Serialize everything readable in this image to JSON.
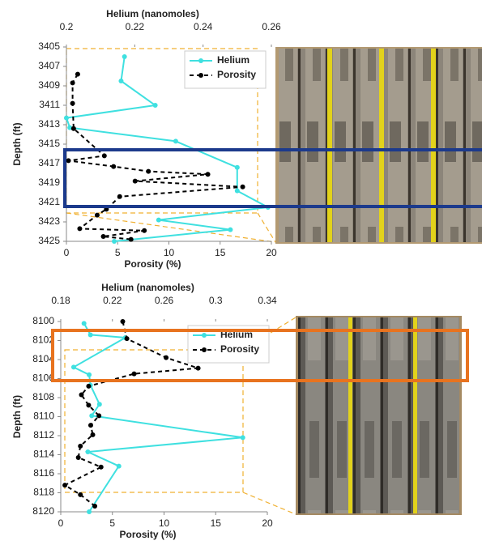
{
  "chart_data": [
    {
      "type": "line",
      "x_title": "Porosity (%)",
      "x2_title": "Helium (nanomoles)",
      "y_title": "Depth (ft)",
      "xlim": [
        0,
        20
      ],
      "xticks": [
        0,
        5,
        10,
        15,
        20
      ],
      "x2lim": [
        0.2,
        0.26
      ],
      "x2ticks": [
        0.2,
        0.22,
        0.24,
        0.26
      ],
      "ylim": [
        3405,
        3425
      ],
      "y_reversed": true,
      "yticks": [
        3405,
        3407,
        3409,
        3411,
        3413,
        3415,
        3417,
        3419,
        3421,
        3423,
        3425
      ],
      "legend": "upper right",
      "grid": false,
      "series": [
        {
          "name": "Helium",
          "color": "#3fe0e0",
          "axis": "x2",
          "linestyle": "solid",
          "y": [
            3406,
            3408.5,
            3411,
            3412.3,
            3413.3,
            3414.7,
            3417.4,
            3419.8,
            3421.5,
            3422.8,
            3423.8,
            3425
          ],
          "values": [
            0.217,
            0.216,
            0.226,
            0.2,
            0.201,
            0.232,
            0.25,
            0.25,
            0.259,
            0.227,
            0.248,
            0.214
          ]
        },
        {
          "name": "Porosity",
          "color": "#000000",
          "axis": "x",
          "linestyle": "dashed",
          "y": [
            3407.8,
            3408.7,
            3410.8,
            3413.4,
            3416.2,
            3416.7,
            3417.3,
            3417.8,
            3418.1,
            3418.8,
            3419.4,
            3420.4,
            3421.7,
            3422.3,
            3423.7,
            3423.9,
            3424.5,
            3424.8
          ],
          "values": [
            1.1,
            0.6,
            0.6,
            0.7,
            3.7,
            0.2,
            4.6,
            8.0,
            13.8,
            6.7,
            17.2,
            5.2,
            3.9,
            3.0,
            1.3,
            7.6,
            3.6,
            6.3
          ]
        }
      ]
    },
    {
      "type": "line",
      "x_title": "Porosity (%)",
      "x2_title": "Helium (nanomoles)",
      "y_title": "Depth (ft)",
      "xlim": [
        0,
        20
      ],
      "xticks": [
        0,
        5,
        10,
        15,
        20
      ],
      "x2lim": [
        0.18,
        0.34
      ],
      "x2ticks": [
        0.18,
        0.22,
        0.26,
        0.3,
        0.34
      ],
      "ylim": [
        8100,
        8120
      ],
      "y_reversed": true,
      "yticks": [
        8100,
        8102,
        8104,
        8106,
        8108,
        8110,
        8112,
        8114,
        8116,
        8118,
        8120
      ],
      "legend": "upper right",
      "grid": false,
      "series": [
        {
          "name": "Helium",
          "color": "#3fe0e0",
          "axis": "x2",
          "linestyle": "solid",
          "y": [
            8100.2,
            8101.4,
            8101.7,
            8104.8,
            8105.6,
            8106.7,
            8108.7,
            8109.9,
            8112.2,
            8113.7,
            8115.2,
            8120
          ],
          "values": [
            0.198,
            0.203,
            0.23,
            0.19,
            0.202,
            0.203,
            0.21,
            0.204,
            0.321,
            0.201,
            0.225,
            0.202
          ]
        },
        {
          "name": "Porosity",
          "color": "#000000",
          "axis": "x",
          "linestyle": "dashed",
          "y": [
            8100,
            8101.8,
            8103.8,
            8104.9,
            8105.5,
            8106.8,
            8107.7,
            8108.8,
            8109.9,
            8110.9,
            8111.9,
            8113.1,
            8114.3,
            8115.3,
            8117.2,
            8118.2,
            8119.4
          ],
          "values": [
            6.0,
            6.4,
            10.2,
            13.3,
            7.1,
            2.7,
            2.0,
            2.7,
            3.7,
            2.9,
            3.1,
            1.9,
            1.7,
            3.9,
            0.4,
            1.9,
            3.3
          ]
        }
      ]
    }
  ]
}
